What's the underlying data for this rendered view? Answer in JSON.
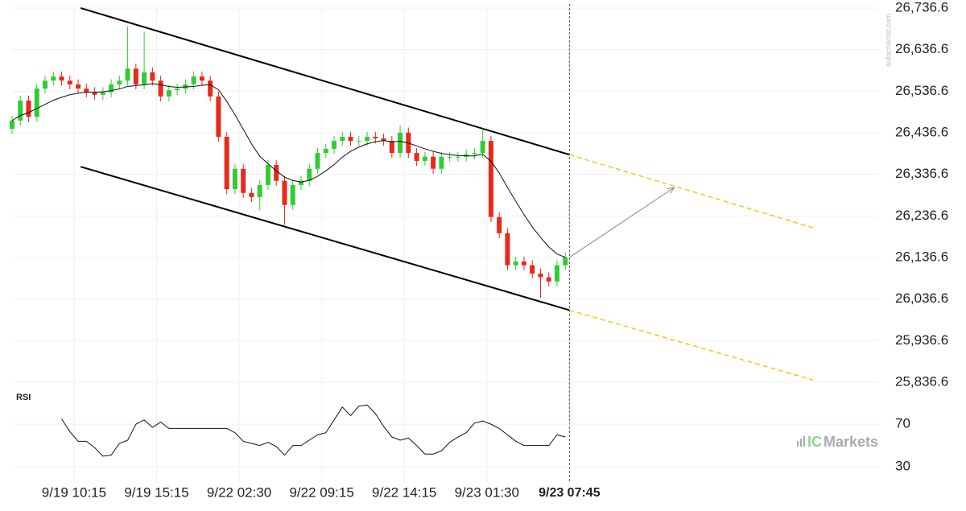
{
  "chart_data": {
    "type": "candlestick",
    "up_color": "#33cc33",
    "down_color": "#e8291c",
    "grid": true,
    "xlim": [
      0,
      105
    ],
    "xticks": [
      {
        "value": 7.5,
        "label": "9/19 10:15"
      },
      {
        "value": 17.5,
        "label": "9/19 15:15"
      },
      {
        "value": 27.5,
        "label": "9/22 02:30"
      },
      {
        "value": 37.5,
        "label": "9/22 09:15"
      },
      {
        "value": 47.5,
        "label": "9/22 14:15"
      },
      {
        "value": 57.5,
        "label": "9/23 01:30"
      },
      {
        "value": 67.5,
        "label": "9/23 07:45"
      }
    ],
    "ylim": [
      25836.6,
      26736.6
    ],
    "yticks": [
      {
        "value": 26736.6,
        "label": "26,736.6"
      },
      {
        "value": 26636.6,
        "label": "26,636.6"
      },
      {
        "value": 26536.6,
        "label": "26,536.6"
      },
      {
        "value": 26436.6,
        "label": "26,436.6"
      },
      {
        "value": 26336.6,
        "label": "26,336.6"
      },
      {
        "value": 26236.6,
        "label": "26,236.6"
      },
      {
        "value": 26136.6,
        "label": "26,136.6"
      },
      {
        "value": 26036.6,
        "label": "26,036.6"
      },
      {
        "value": 25936.6,
        "label": "25,936.6"
      },
      {
        "value": 25836.6,
        "label": "25,836.6"
      }
    ],
    "candles": {
      "open": [
        26446,
        26466,
        26514,
        26475,
        26543,
        26562,
        26572,
        26562,
        26553,
        26543,
        26534,
        26528,
        26534,
        26553,
        26562,
        26591,
        26553,
        26582,
        26562,
        26524,
        26539,
        26543,
        26553,
        26572,
        26562,
        26524,
        26427,
        26301,
        26350,
        26292,
        26282,
        26311,
        26359,
        26321,
        26263,
        26311,
        26321,
        26350,
        26388,
        26398,
        26417,
        26427,
        26417,
        26417,
        26427,
        26423,
        26417,
        26388,
        26437,
        26388,
        26369,
        26379,
        26350,
        26379,
        26379,
        26379,
        26385,
        26388,
        26417,
        26234,
        26195,
        26118,
        26127,
        26118,
        26098,
        26089,
        26079,
        26118
      ],
      "high": [
        26478,
        26526,
        26526,
        26555,
        26574,
        26584,
        26584,
        26574,
        26565,
        26555,
        26546,
        26546,
        26565,
        26574,
        26693,
        26603,
        26680,
        26594,
        26574,
        26551,
        26555,
        26565,
        26584,
        26584,
        26574,
        26536,
        26439,
        26362,
        26362,
        26304,
        26323,
        26371,
        26371,
        26333,
        26323,
        26333,
        26362,
        26400,
        26410,
        26429,
        26439,
        26439,
        26429,
        26439,
        26439,
        26435,
        26429,
        26455,
        26449,
        26400,
        26391,
        26391,
        26391,
        26391,
        26391,
        26397,
        26400,
        26447,
        26429,
        26246,
        26207,
        26139,
        26139,
        26130,
        26110,
        26101,
        26130,
        26149
      ],
      "low": [
        26434,
        26454,
        26463,
        26463,
        26531,
        26550,
        26550,
        26541,
        26531,
        26522,
        26516,
        26516,
        26522,
        26541,
        26550,
        26541,
        26541,
        26550,
        26512,
        26512,
        26527,
        26531,
        26541,
        26550,
        26512,
        26415,
        26289,
        26289,
        26280,
        26270,
        26250,
        26299,
        26309,
        26215,
        26251,
        26299,
        26309,
        26338,
        26376,
        26386,
        26405,
        26405,
        26405,
        26405,
        26411,
        26405,
        26376,
        26376,
        26376,
        26357,
        26357,
        26338,
        26338,
        26367,
        26367,
        26367,
        26373,
        26376,
        26222,
        26183,
        26106,
        26106,
        26106,
        26086,
        26040,
        26067,
        26067,
        26106
      ],
      "close": [
        26466,
        26514,
        26475,
        26543,
        26562,
        26572,
        26562,
        26553,
        26543,
        26534,
        26528,
        26534,
        26553,
        26562,
        26591,
        26553,
        26582,
        26562,
        26524,
        26539,
        26543,
        26553,
        26572,
        26562,
        26524,
        26427,
        26301,
        26350,
        26292,
        26282,
        26311,
        26359,
        26321,
        26263,
        26311,
        26321,
        26350,
        26388,
        26398,
        26417,
        26427,
        26417,
        26417,
        26427,
        26423,
        26417,
        26388,
        26437,
        26388,
        26369,
        26379,
        26350,
        26379,
        26379,
        26379,
        26385,
        26388,
        26417,
        26234,
        26195,
        26118,
        26127,
        26118,
        26098,
        26089,
        26079,
        26118,
        26137
      ]
    },
    "ma": {
      "color": "#111111",
      "values": [
        26466,
        26478,
        26485,
        26495,
        26505,
        26515,
        26522,
        26528,
        26532,
        26534,
        26534,
        26535,
        26538,
        26542,
        26548,
        26550,
        26552,
        26555,
        26552,
        26548,
        26546,
        26547,
        26548,
        26551,
        26552,
        26540,
        26512,
        26480,
        26445,
        26410,
        26380,
        26362,
        26345,
        26330,
        26322,
        26318,
        26322,
        26332,
        26345,
        26360,
        26378,
        26392,
        26402,
        26410,
        26415,
        26418,
        26415,
        26416,
        26412,
        26405,
        26398,
        26392,
        26387,
        26384,
        26382,
        26381,
        26381,
        26385,
        26368,
        26340,
        26305,
        26272,
        26240,
        26210,
        26185,
        26162,
        26145,
        26137
      ]
    },
    "channel": {
      "color": "#000000",
      "upper": {
        "x": [
          8.3,
          67.5
        ],
        "y": [
          26736.6,
          26384
        ]
      },
      "lower": {
        "x": [
          8.3,
          67.5
        ],
        "y": [
          26355,
          26010
        ]
      }
    },
    "projection": {
      "color": "#f5c518",
      "upper": {
        "x": [
          67.5,
          97
        ],
        "y": [
          26384,
          26208
        ]
      },
      "lower": {
        "x": [
          67.5,
          97
        ],
        "y": [
          26010,
          25842
        ]
      }
    },
    "arrow": {
      "color": "#888888",
      "x": [
        67.5,
        80.2
      ],
      "y": [
        26137,
        26305
      ]
    },
    "rsi": {
      "label": "RSI",
      "ylim": [
        15,
        95
      ],
      "yticks": [
        70,
        30
      ],
      "values": [
        null,
        null,
        null,
        null,
        null,
        null,
        75,
        63,
        54,
        54,
        48,
        40,
        41,
        52,
        55,
        70,
        74,
        67,
        72,
        66,
        66,
        66,
        66,
        66,
        66,
        66,
        66,
        62,
        54,
        52,
        50,
        53,
        49,
        41,
        50,
        50,
        55,
        60,
        62,
        74,
        86,
        78,
        87,
        88,
        80,
        68,
        58,
        55,
        57,
        50,
        42,
        42,
        45,
        53,
        58,
        62,
        71,
        73,
        70,
        66,
        60,
        54,
        50,
        50,
        50,
        50,
        60,
        58
      ]
    },
    "watermark": "autochartist.com",
    "brand": {
      "prefix": "IC",
      "name": "Markets"
    }
  }
}
